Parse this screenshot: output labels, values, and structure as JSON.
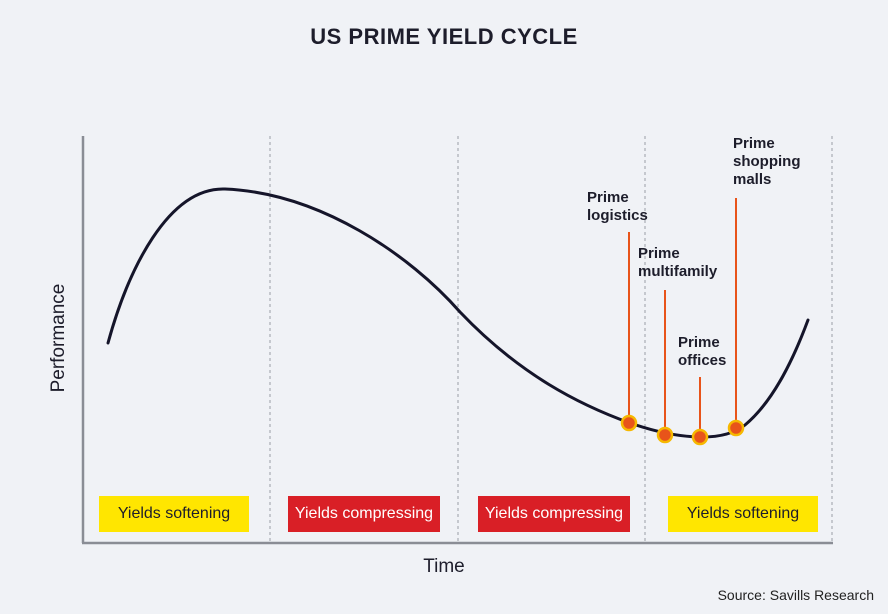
{
  "title": "US PRIME YIELD CYCLE",
  "xlabel": "Time",
  "ylabel": "Performance",
  "source": "Source: Savills Research",
  "chart_data": {
    "type": "line",
    "title": "US PRIME YIELD CYCLE",
    "xlabel": "Time",
    "ylabel": "Performance",
    "grid": "vertical dashed phase separators",
    "legend": "none",
    "phases": [
      {
        "label": "Yields softening",
        "kind": "softening"
      },
      {
        "label": "Yields compressing",
        "kind": "compressing"
      },
      {
        "label": "Yields compressing",
        "kind": "compressing"
      },
      {
        "label": "Yields softening",
        "kind": "softening"
      }
    ],
    "annotations": [
      {
        "label": "Prime logistics",
        "lines": [
          "Prime",
          "logistics"
        ]
      },
      {
        "label": "Prime multifamily",
        "lines": [
          "Prime",
          "multifamily"
        ]
      },
      {
        "label": "Prime offices",
        "lines": [
          "Prime",
          "offices"
        ]
      },
      {
        "label": "Prime shopping malls",
        "lines": [
          "Prime",
          "shopping",
          "malls"
        ]
      }
    ],
    "colors": {
      "curve": "#15152a",
      "softening": "#ffe600",
      "compressing": "#d91f26",
      "marker": "#e8541a",
      "marker_outline": "#f6b800",
      "leader": "#e8541a"
    }
  }
}
